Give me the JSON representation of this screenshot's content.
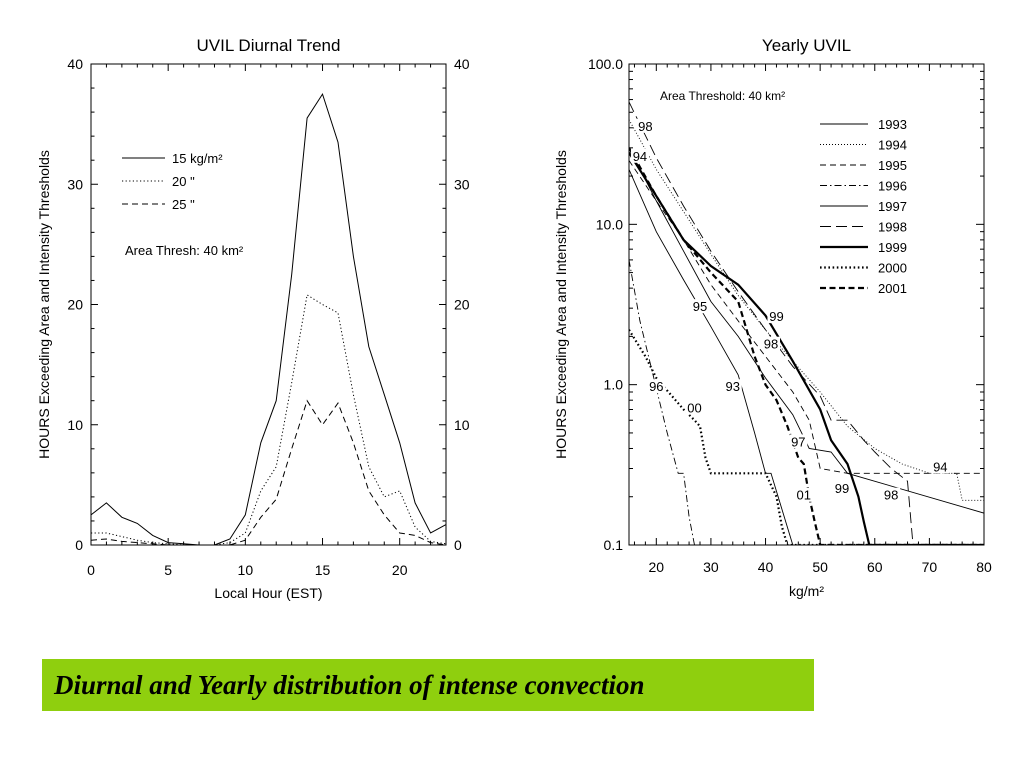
{
  "chart_data": [
    {
      "type": "line",
      "title": "UVIL Diurnal Trend",
      "xlabel": "Local Hour (EST)",
      "ylabel": "HOURS Exceeding Area and Intensity Thresholds",
      "xlim": [
        0,
        23
      ],
      "ylim": [
        0,
        40
      ],
      "xticks": [
        0,
        5,
        10,
        15,
        20
      ],
      "yticks": [
        0,
        10,
        20,
        30,
        40
      ],
      "grid": false,
      "legend": [
        {
          "label": "15 kg/m²",
          "style": "solid"
        },
        {
          "label": "20   \"",
          "style": "dotted"
        },
        {
          "label": "25   \"",
          "style": "dashed"
        }
      ],
      "annotation": "Area Thresh: 40 km²",
      "series": [
        {
          "style": "solid",
          "x": [
            0,
            1,
            2,
            3,
            4,
            5,
            6,
            7,
            8,
            9,
            10,
            11,
            12,
            13,
            14,
            15,
            16,
            17,
            18,
            19,
            20,
            21,
            22,
            23
          ],
          "y": [
            2.5,
            3.5,
            2.3,
            1.8,
            0.8,
            0.2,
            0.1,
            0.0,
            0.0,
            0.5,
            2.5,
            8.5,
            12.0,
            22.5,
            35.5,
            37.5,
            33.5,
            24.0,
            16.5,
            12.5,
            8.5,
            3.5,
            1.0,
            1.7
          ]
        },
        {
          "style": "dotted",
          "x": [
            0,
            1,
            2,
            3,
            4,
            5,
            6,
            7,
            8,
            9,
            10,
            11,
            12,
            13,
            14,
            15,
            16,
            17,
            18,
            19,
            20,
            21,
            22,
            23
          ],
          "y": [
            1.0,
            1.0,
            0.7,
            0.4,
            0.2,
            0.1,
            0.0,
            0.0,
            0.0,
            0.2,
            1.0,
            4.5,
            6.5,
            13.5,
            20.8,
            20.0,
            19.3,
            12.5,
            6.5,
            4.0,
            4.5,
            1.5,
            0.3,
            0.1
          ]
        },
        {
          "style": "dashed",
          "x": [
            0,
            1,
            2,
            3,
            4,
            5,
            6,
            7,
            8,
            9,
            10,
            11,
            12,
            13,
            14,
            15,
            16,
            17,
            18,
            19,
            20,
            21,
            22,
            23
          ],
          "y": [
            0.4,
            0.5,
            0.3,
            0.2,
            0.1,
            0.0,
            0.0,
            0.0,
            0.0,
            0.0,
            0.4,
            2.3,
            3.8,
            8.0,
            12.0,
            10.0,
            11.8,
            8.5,
            4.5,
            2.5,
            1.0,
            0.8,
            0.2,
            0.0
          ]
        }
      ]
    },
    {
      "type": "line",
      "title": "Yearly UVIL",
      "xlabel": "kg/m²",
      "ylabel": "HOURS Exceeding Area and Intensity Thresholds",
      "xlim": [
        15,
        80
      ],
      "ylim": [
        0.1,
        100
      ],
      "yscale": "log",
      "xticks": [
        20,
        30,
        40,
        50,
        60,
        70,
        80
      ],
      "yticks": [
        0.1,
        1.0,
        10.0,
        100.0
      ],
      "ytick_labels": [
        "0.1",
        "1.0",
        "10.0",
        "100.0"
      ],
      "grid": false,
      "annotation": "Area Threshold: 40 km²",
      "legend_position": "top-right",
      "series": [
        {
          "name": "1993",
          "style": "solid-thin",
          "x": [
            15,
            20,
            25,
            30,
            35,
            38,
            40,
            41,
            45,
            100
          ],
          "y": [
            22,
            9,
            4.5,
            2.3,
            1.15,
            0.5,
            0.28,
            0.28,
            0.1,
            0.1
          ]
        },
        {
          "name": "1994",
          "style": "dotted-thin",
          "x": [
            15,
            20,
            25,
            30,
            35,
            40,
            45,
            50,
            55,
            60,
            65,
            70,
            75,
            76,
            80
          ],
          "y": [
            45,
            22,
            12,
            6.5,
            3.6,
            2.2,
            1.4,
            0.9,
            0.55,
            0.4,
            0.32,
            0.28,
            0.28,
            0.19,
            0.19
          ]
        },
        {
          "name": "1995",
          "style": "dashed-thin",
          "x": [
            15,
            20,
            25,
            30,
            35,
            40,
            45,
            48,
            50,
            55,
            100
          ],
          "y": [
            25,
            14,
            8,
            4.2,
            2.5,
            1.5,
            0.9,
            0.6,
            0.3,
            0.28,
            0.28
          ]
        },
        {
          "name": "1996",
          "style": "dashdot-thin",
          "x": [
            15,
            17,
            20,
            22,
            24,
            25,
            26,
            27,
            100
          ],
          "y": [
            6,
            2.5,
            0.95,
            0.5,
            0.28,
            0.28,
            0.15,
            0.1,
            0.1
          ]
        },
        {
          "name": "1997",
          "style": "solid-thin",
          "x": [
            15,
            20,
            25,
            30,
            35,
            40,
            45,
            48,
            52,
            55,
            100
          ],
          "y": [
            30,
            14,
            6.8,
            3.3,
            2.0,
            1.1,
            0.65,
            0.4,
            0.38,
            0.28,
            0.1
          ]
        },
        {
          "name": "1998",
          "style": "longdash-thin",
          "x": [
            15,
            20,
            25,
            30,
            35,
            40,
            45,
            50,
            52,
            55,
            58,
            60,
            63,
            66,
            67,
            100
          ],
          "y": [
            58,
            26,
            13,
            6.8,
            3.8,
            2.2,
            1.3,
            0.85,
            0.6,
            0.6,
            0.45,
            0.38,
            0.3,
            0.25,
            0.1,
            0.1
          ]
        },
        {
          "name": "1999",
          "style": "solid-thick",
          "x": [
            15,
            20,
            25,
            30,
            35,
            40,
            45,
            50,
            52,
            55,
            57,
            58,
            59,
            100
          ],
          "y": [
            28,
            15,
            8,
            5.5,
            4.2,
            2.7,
            1.4,
            0.7,
            0.45,
            0.32,
            0.2,
            0.14,
            0.1,
            0.1
          ]
        },
        {
          "name": "2000",
          "style": "dotted-thick",
          "x": [
            15,
            18,
            20,
            25,
            27,
            28,
            29,
            30,
            31,
            32,
            40,
            42,
            43,
            44,
            100
          ],
          "y": [
            2.2,
            1.5,
            1.1,
            0.7,
            0.6,
            0.55,
            0.35,
            0.28,
            0.28,
            0.28,
            0.28,
            0.2,
            0.13,
            0.1,
            0.1
          ]
        },
        {
          "name": "2001",
          "style": "dashed-thick",
          "x": [
            15,
            20,
            25,
            30,
            35,
            38,
            40,
            42,
            44,
            46,
            47,
            48,
            49,
            50,
            100
          ],
          "y": [
            30,
            15,
            8,
            5,
            3.3,
            1.5,
            1.0,
            0.8,
            0.55,
            0.35,
            0.32,
            0.2,
            0.14,
            0.1,
            0.1
          ]
        }
      ],
      "curve_labels": [
        {
          "text": "98",
          "x": 18,
          "y": 40
        },
        {
          "text": "94",
          "x": 17,
          "y": 26
        },
        {
          "text": "95",
          "x": 28,
          "y": 3.0
        },
        {
          "text": "99",
          "x": 42,
          "y": 2.6
        },
        {
          "text": "98",
          "x": 41,
          "y": 1.75
        },
        {
          "text": "96",
          "x": 20,
          "y": 0.95
        },
        {
          "text": "93",
          "x": 34,
          "y": 0.95
        },
        {
          "text": "00",
          "x": 27,
          "y": 0.7
        },
        {
          "text": "97",
          "x": 46,
          "y": 0.43
        },
        {
          "text": "01",
          "x": 47,
          "y": 0.2
        },
        {
          "text": "99",
          "x": 54,
          "y": 0.22
        },
        {
          "text": "98",
          "x": 63,
          "y": 0.2
        },
        {
          "text": "94",
          "x": 72,
          "y": 0.3
        }
      ]
    }
  ],
  "caption": "Diurnal and Yearly distribution of intense convection"
}
